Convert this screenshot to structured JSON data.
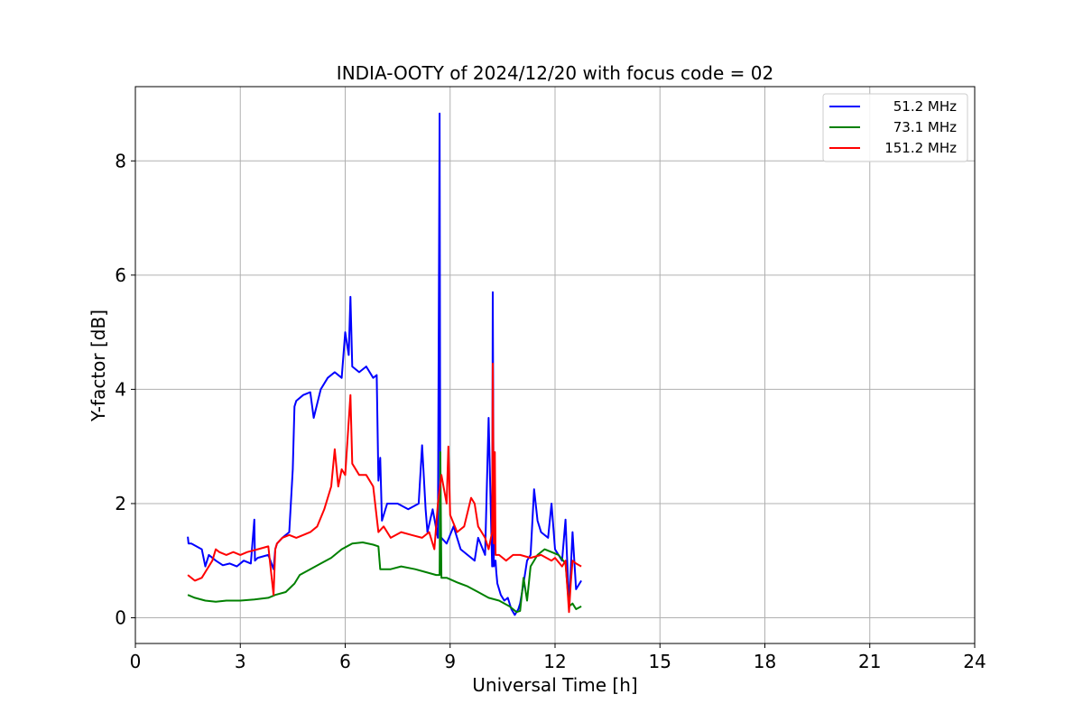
{
  "chart_data": {
    "type": "line",
    "title": "INDIA-OOTY of 2024/12/20 with focus code = 02",
    "xlabel": "Universal Time [h]",
    "ylabel": "Y-factor [dB]",
    "xlim": [
      0,
      24
    ],
    "ylim": [
      -0.45,
      9.3
    ],
    "xticks": [
      0,
      3,
      6,
      9,
      12,
      15,
      18,
      21,
      24
    ],
    "yticks": [
      0,
      2,
      4,
      6,
      8
    ],
    "grid": true,
    "legend_position": "top-right",
    "series": [
      {
        "name": "51.2 MHz",
        "color": "#0000ff",
        "x": [
          1.5,
          1.52,
          1.6,
          1.9,
          2.0,
          2.1,
          2.3,
          2.5,
          2.7,
          2.9,
          3.1,
          3.3,
          3.4,
          3.42,
          3.5,
          3.8,
          3.95,
          4.0,
          4.05,
          4.2,
          4.4,
          4.5,
          4.55,
          4.6,
          4.8,
          5.0,
          5.1,
          5.3,
          5.5,
          5.7,
          5.9,
          6.0,
          6.1,
          6.15,
          6.2,
          6.4,
          6.6,
          6.8,
          6.9,
          6.95,
          7.0,
          7.05,
          7.2,
          7.5,
          7.8,
          8.1,
          8.2,
          8.3,
          8.35,
          8.5,
          8.65,
          8.7,
          8.72,
          8.75,
          8.9,
          9.1,
          9.3,
          9.5,
          9.7,
          9.8,
          10.0,
          10.1,
          10.2,
          10.22,
          10.25,
          10.3,
          10.32,
          10.35,
          10.45,
          10.55,
          10.65,
          10.75,
          10.85,
          10.95,
          11.0,
          11.1,
          11.2,
          11.3,
          11.4,
          11.5,
          11.6,
          11.8,
          11.9,
          12.0,
          12.2,
          12.3,
          12.4,
          12.5,
          12.6,
          12.75
        ],
        "y": [
          1.42,
          1.3,
          1.3,
          1.2,
          0.9,
          1.1,
          1.0,
          0.92,
          0.95,
          0.9,
          1.0,
          0.95,
          1.72,
          1.0,
          1.05,
          1.1,
          0.85,
          1.2,
          1.3,
          1.4,
          1.5,
          2.6,
          3.7,
          3.8,
          3.9,
          3.95,
          3.5,
          4.0,
          4.2,
          4.3,
          4.2,
          5.0,
          4.6,
          5.62,
          4.4,
          4.3,
          4.4,
          4.2,
          4.25,
          2.4,
          2.8,
          1.7,
          2.0,
          2.0,
          1.9,
          2.0,
          3.02,
          1.9,
          1.5,
          1.9,
          1.4,
          8.83,
          1.3,
          1.4,
          1.3,
          1.6,
          1.2,
          1.1,
          1.0,
          1.4,
          1.1,
          3.5,
          0.9,
          5.7,
          0.9,
          1.0,
          0.8,
          0.6,
          0.4,
          0.3,
          0.35,
          0.15,
          0.05,
          0.15,
          0.25,
          0.6,
          1.0,
          1.1,
          2.25,
          1.7,
          1.5,
          1.4,
          2.0,
          1.2,
          1.0,
          1.72,
          0.2,
          1.5,
          0.5,
          0.65
        ]
      },
      {
        "name": "73.1 MHz",
        "color": "#008000",
        "x": [
          1.5,
          1.7,
          2.0,
          2.3,
          2.6,
          3.0,
          3.4,
          3.8,
          4.0,
          4.3,
          4.55,
          4.7,
          5.0,
          5.3,
          5.6,
          5.9,
          6.2,
          6.5,
          6.8,
          6.95,
          7.0,
          7.3,
          7.6,
          8.0,
          8.3,
          8.6,
          8.7,
          8.72,
          8.75,
          8.9,
          9.2,
          9.5,
          9.8,
          10.1,
          10.4,
          10.7,
          10.9,
          11.0,
          11.1,
          11.2,
          11.3,
          11.5,
          11.7,
          11.9,
          12.1,
          12.3,
          12.4,
          12.5,
          12.6,
          12.75
        ],
        "y": [
          0.4,
          0.35,
          0.3,
          0.28,
          0.3,
          0.3,
          0.32,
          0.35,
          0.4,
          0.45,
          0.6,
          0.75,
          0.85,
          0.95,
          1.05,
          1.2,
          1.3,
          1.32,
          1.28,
          1.25,
          0.85,
          0.85,
          0.9,
          0.85,
          0.8,
          0.75,
          0.75,
          2.9,
          0.7,
          0.7,
          0.62,
          0.55,
          0.45,
          0.35,
          0.3,
          0.2,
          0.1,
          0.12,
          0.7,
          0.3,
          0.9,
          1.1,
          1.2,
          1.15,
          1.1,
          0.95,
          0.2,
          0.25,
          0.15,
          0.2
        ]
      },
      {
        "name": "151.2 MHz",
        "color": "#ff0000",
        "x": [
          1.5,
          1.7,
          1.9,
          2.0,
          2.2,
          2.3,
          2.4,
          2.6,
          2.8,
          3.0,
          3.2,
          3.5,
          3.8,
          3.95,
          4.0,
          4.05,
          4.2,
          4.4,
          4.6,
          4.8,
          5.0,
          5.2,
          5.4,
          5.6,
          5.7,
          5.8,
          5.9,
          6.0,
          6.15,
          6.2,
          6.4,
          6.6,
          6.8,
          6.95,
          7.1,
          7.3,
          7.6,
          7.9,
          8.2,
          8.4,
          8.55,
          8.65,
          8.75,
          8.9,
          8.95,
          9.0,
          9.2,
          9.4,
          9.6,
          9.7,
          9.8,
          10.0,
          10.1,
          10.2,
          10.22,
          10.25,
          10.28,
          10.3,
          10.4,
          10.6,
          10.8,
          11.0,
          11.3,
          11.6,
          11.9,
          12.0,
          12.2,
          12.3,
          12.4,
          12.45,
          12.5,
          12.6,
          12.75
        ],
        "y": [
          0.75,
          0.65,
          0.7,
          0.8,
          1.0,
          1.2,
          1.15,
          1.1,
          1.15,
          1.1,
          1.15,
          1.2,
          1.25,
          0.4,
          1.2,
          1.3,
          1.4,
          1.45,
          1.4,
          1.45,
          1.5,
          1.6,
          1.9,
          2.3,
          2.95,
          2.3,
          2.6,
          2.5,
          3.9,
          2.7,
          2.5,
          2.5,
          2.3,
          1.5,
          1.6,
          1.4,
          1.5,
          1.45,
          1.4,
          1.5,
          1.2,
          2.0,
          2.5,
          2.0,
          3.0,
          1.8,
          1.5,
          1.6,
          2.1,
          2.0,
          1.6,
          1.4,
          1.2,
          1.5,
          4.45,
          1.3,
          2.9,
          1.1,
          1.1,
          1.0,
          1.1,
          1.1,
          1.05,
          1.1,
          1.0,
          1.05,
          0.9,
          1.0,
          0.1,
          0.6,
          1.0,
          0.95,
          0.9
        ]
      }
    ]
  }
}
